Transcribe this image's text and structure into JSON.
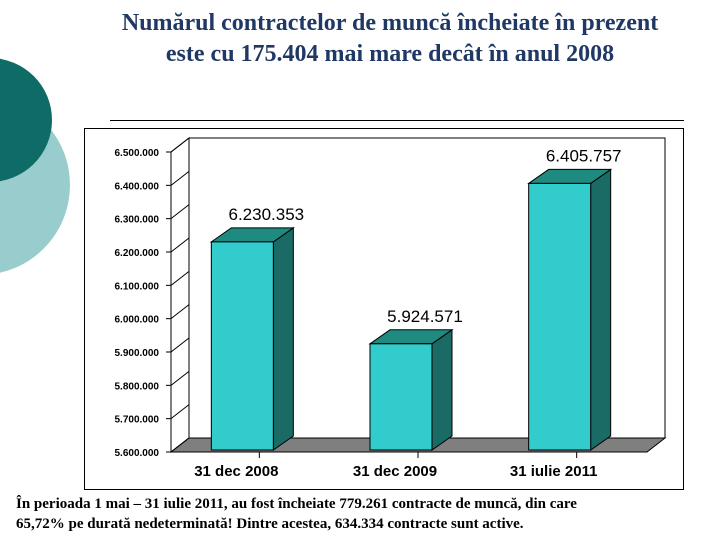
{
  "slide": {
    "title_line1": "Numărul contractelor de muncă încheiate în prezent",
    "title_line2": "este cu 175.404 mai mare decât în anul 2008",
    "footer_line1": "În perioada 1 mai – 31 iulie 2011, au fost încheiate 779.261 contracte de muncă, din care",
    "footer_line2": "65,72% pe durată nedeterminată! Dintre acestea, 634.334 contracte sunt active."
  },
  "colors": {
    "title": "#1f3864",
    "bar_front": "#33cccc",
    "bar_side": "#1a6b66",
    "bar_top": "#1f8a80",
    "floor": "#7f7f7f",
    "deco_dark": "#0f6b65",
    "deco_light": "#99cccc"
  },
  "chart_data": {
    "type": "bar",
    "title": "",
    "categories": [
      "31 dec 2008",
      "31 dec 2009",
      "31 iulie 2011"
    ],
    "values": [
      6230353,
      5924571,
      6405757
    ],
    "value_labels": [
      "6.230.353",
      "5.924.571",
      "6.405.757"
    ],
    "ylim": [
      5600000,
      6500000
    ],
    "yticks": [
      5600000,
      5700000,
      5800000,
      5900000,
      6000000,
      6100000,
      6200000,
      6300000,
      6400000,
      6500000
    ],
    "ytick_labels": [
      "5.600.000",
      "5.700.000",
      "5.800.000",
      "5.900.000",
      "6.000.000",
      "6.100.000",
      "6.200.000",
      "6.300.000",
      "6.400.000",
      "6.500.000"
    ],
    "xlabel": "",
    "ylabel": "",
    "grid": false,
    "legend": "none"
  }
}
